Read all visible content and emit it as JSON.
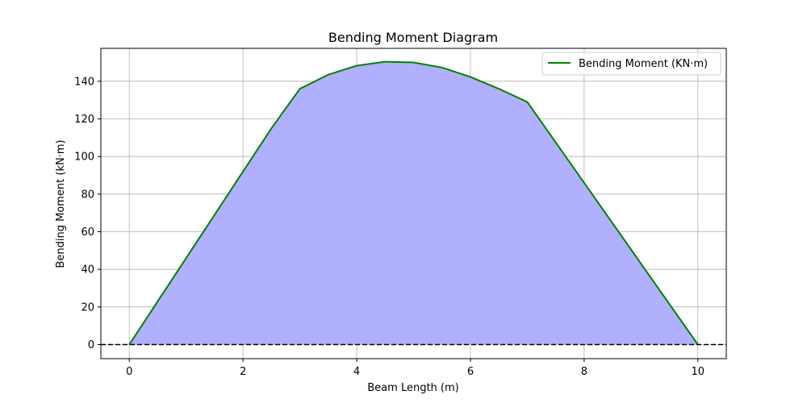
{
  "chart_data": {
    "type": "area",
    "title": "Bending Moment Diagram",
    "xlabel": "Beam Length (m)",
    "ylabel": "Bending Moment (kN·m)",
    "xlim": [
      -0.5,
      10.5
    ],
    "ylim": [
      -7.5,
      157.5
    ],
    "xticks": [
      0,
      2,
      4,
      6,
      8,
      10
    ],
    "yticks": [
      0,
      20,
      40,
      60,
      80,
      100,
      120,
      140
    ],
    "grid": true,
    "legend_position": "top-right",
    "zero_line": {
      "y": 0,
      "style": "dashed",
      "color": "#000000"
    },
    "series": [
      {
        "name": "Bending Moment (KN·m)",
        "line_color": "#008000",
        "fill_color": "#b0b0ff",
        "x": [
          0,
          0.5,
          1,
          1.5,
          2,
          2.5,
          3,
          3.5,
          4,
          4.5,
          5,
          5.5,
          6,
          6.5,
          7,
          7.5,
          8,
          8.5,
          9,
          9.5,
          10
        ],
        "y": [
          0,
          23,
          46,
          69,
          92,
          115,
          136,
          143.5,
          148.3,
          150.4,
          150.0,
          147.3,
          142.3,
          136,
          129,
          107.5,
          86,
          64.5,
          43,
          21.5,
          0
        ]
      }
    ]
  }
}
